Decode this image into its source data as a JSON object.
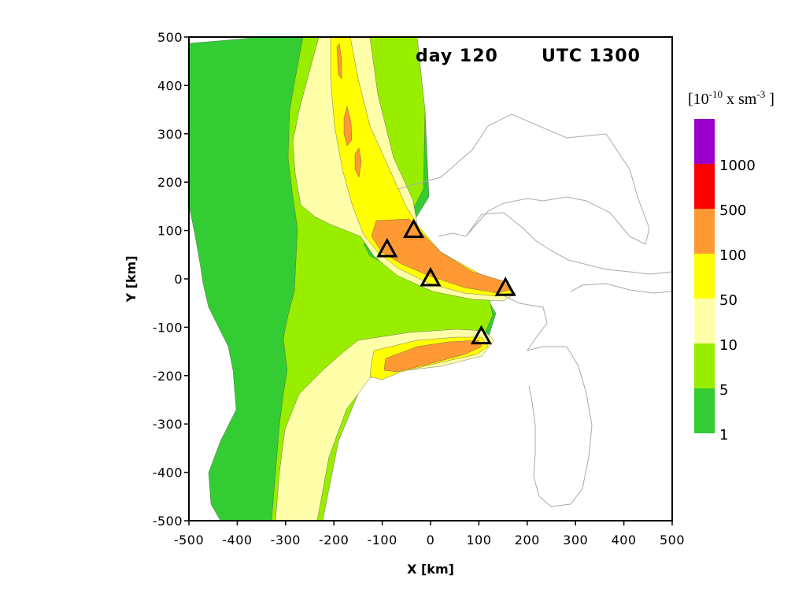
{
  "chart_data": {
    "type": "heatmap",
    "title": "",
    "annotations": {
      "day": "day 120",
      "time": "UTC 1300"
    },
    "xlabel": "X [km]",
    "ylabel": "Y [km]",
    "xlim": [
      -500,
      500
    ],
    "ylim": [
      -500,
      500
    ],
    "xticks": [
      -500,
      -400,
      -300,
      -200,
      -100,
      0,
      100,
      200,
      300,
      400,
      500
    ],
    "yticks": [
      -500,
      -400,
      -300,
      -200,
      -100,
      0,
      100,
      200,
      300,
      400,
      500
    ],
    "colorbar": {
      "title_base": "[10",
      "title_exp1": "-10",
      "title_mid": " x sm",
      "title_exp2": "-3",
      "title_end": " ]",
      "levels": [
        1,
        5,
        10,
        50,
        100,
        500,
        1000
      ],
      "colors": [
        "#33cc33",
        "#99ee00",
        "#ffffaa",
        "#ffff00",
        "#ff9933",
        "#ff0000",
        "#9900cc"
      ]
    },
    "sources": [
      {
        "x": -90,
        "y": 60
      },
      {
        "x": -35,
        "y": 100
      },
      {
        "x": 0,
        "y": 0
      },
      {
        "x": 155,
        "y": -20
      },
      {
        "x": 105,
        "y": -120
      }
    ]
  }
}
